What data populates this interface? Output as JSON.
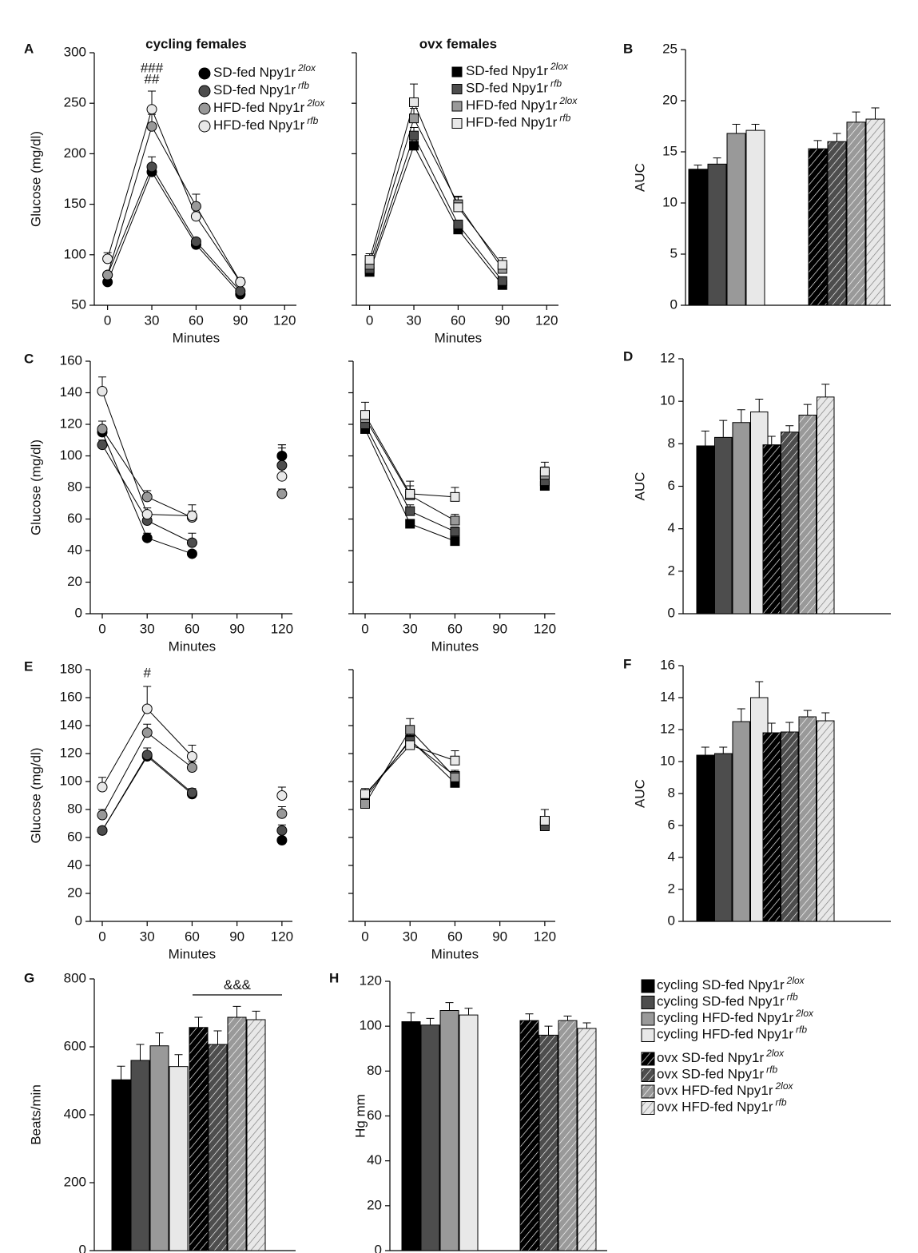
{
  "chart_data": [
    {
      "type": "line",
      "panel": "A",
      "title": "cycling females",
      "ylabel": "Glucose (mg/dl)",
      "xlabel": "Minutes",
      "marker": "circle",
      "x": [
        0,
        30,
        60,
        90,
        120
      ],
      "xlim": [
        -9,
        128
      ],
      "xticks": [
        0,
        30,
        60,
        90,
        120
      ],
      "ylim": [
        50,
        300
      ],
      "yticks": [
        50,
        100,
        150,
        200,
        250,
        300
      ],
      "annotations": [
        {
          "text": "###",
          "x": 30,
          "y": 284
        },
        {
          "text": "##",
          "x": 30,
          "y": 273
        }
      ],
      "series": [
        {
          "name": "SD-fed Npy1r",
          "sup": "2lox",
          "color": "#000000",
          "values": [
            73,
            182,
            110,
            61,
            null
          ],
          "errors": [
            2,
            3,
            3,
            2,
            null
          ]
        },
        {
          "name": "SD-fed Npy1r",
          "sup": "rfb",
          "color": "#4d4d4d",
          "values": [
            80,
            187,
            113,
            64,
            null
          ],
          "errors": [
            2,
            10,
            3,
            3,
            null
          ]
        },
        {
          "name": "HFD-fed Npy1r",
          "sup": "2lox",
          "color": "#999999",
          "values": [
            80,
            227,
            148,
            73,
            null
          ],
          "errors": [
            3,
            12,
            12,
            3,
            null
          ]
        },
        {
          "name": "HFD-fed Npy1r",
          "sup": "rfb",
          "color": "#e8e8e8",
          "values": [
            96,
            244,
            138,
            73,
            null
          ],
          "errors": [
            6,
            18,
            10,
            4,
            null
          ]
        }
      ]
    },
    {
      "type": "line",
      "title": "ovx females",
      "xlabel": "Minutes",
      "marker": "square",
      "sharey": true,
      "x": [
        0,
        30,
        60,
        90,
        120
      ],
      "xlim": [
        -9,
        128
      ],
      "xticks": [
        0,
        30,
        60,
        90,
        120
      ],
      "series": [
        {
          "name": "SD-fed Npy1r",
          "sup": "2lox",
          "color": "#000000",
          "values": [
            83,
            208,
            125,
            70,
            null
          ],
          "errors": [
            2,
            3,
            3,
            2,
            null
          ]
        },
        {
          "name": "SD-fed Npy1r",
          "sup": "rfb",
          "color": "#4d4d4d",
          "values": [
            86,
            218,
            130,
            74,
            null
          ],
          "errors": [
            3,
            8,
            4,
            3,
            null
          ]
        },
        {
          "name": "HFD-fed Npy1r",
          "sup": "2lox",
          "color": "#999999",
          "values": [
            90,
            235,
            150,
            86,
            null
          ],
          "errors": [
            5,
            10,
            8,
            5,
            null
          ]
        },
        {
          "name": "HFD-fed Npy1r",
          "sup": "rfb",
          "color": "#e8e8e8",
          "values": [
            95,
            251,
            147,
            90,
            null
          ],
          "errors": [
            6,
            18,
            10,
            7,
            null
          ]
        }
      ]
    },
    {
      "type": "bar",
      "panel": "B",
      "ylabel": "AUC",
      "ylim": [
        0,
        25
      ],
      "yticks": [
        0,
        5,
        10,
        15,
        20,
        25
      ],
      "values": [
        13.3,
        13.8,
        16.8,
        17.1,
        15.3,
        16.0,
        17.9,
        18.2
      ],
      "errors": [
        0.4,
        0.6,
        0.9,
        0.6,
        0.8,
        0.8,
        1.0,
        1.1
      ],
      "colors": [
        "#000000",
        "#4d4d4d",
        "#999999",
        "#e8e8e8",
        "#000000",
        "#4d4d4d",
        "#999999",
        "#e8e8e8"
      ],
      "hatch": [
        false,
        false,
        false,
        false,
        true,
        true,
        true,
        true
      ]
    },
    {
      "type": "line",
      "panel": "C",
      "ylabel": "Glucose (mg/dl)",
      "xlabel": "Minutes",
      "marker": "circle",
      "x": [
        0,
        30,
        60,
        90,
        120
      ],
      "xlim": [
        -8,
        127
      ],
      "xticks": [
        0,
        30,
        60,
        90,
        120
      ],
      "ylim": [
        0,
        160
      ],
      "yticks": [
        0,
        20,
        40,
        60,
        80,
        100,
        120,
        140,
        160
      ],
      "series": [
        {
          "color": "#000000",
          "values": [
            115,
            48,
            38,
            null,
            100
          ],
          "errors": [
            3,
            3,
            2,
            null,
            5
          ]
        },
        {
          "color": "#4d4d4d",
          "values": [
            107,
            59,
            45,
            null,
            94
          ],
          "errors": [
            3,
            3,
            6,
            null,
            13
          ]
        },
        {
          "color": "#999999",
          "values": [
            117,
            74,
            61,
            null,
            76
          ],
          "errors": [
            5,
            4,
            4,
            null,
            3
          ]
        },
        {
          "color": "#e8e8e8",
          "values": [
            141,
            63,
            62,
            null,
            87
          ],
          "errors": [
            9,
            4,
            7,
            null,
            20
          ]
        }
      ]
    },
    {
      "type": "line",
      "xlabel": "Minutes",
      "marker": "square",
      "sharey": true,
      "x": [
        0,
        30,
        60,
        90,
        120
      ],
      "xlim": [
        -8,
        127
      ],
      "xticks": [
        0,
        30,
        60,
        90,
        120
      ],
      "series": [
        {
          "color": "#000000",
          "values": [
            117,
            57,
            46,
            null,
            81
          ],
          "errors": [
            2,
            2,
            2,
            null,
            2
          ]
        },
        {
          "color": "#4d4d4d",
          "values": [
            120,
            65,
            52,
            null,
            84
          ],
          "errors": [
            3,
            4,
            3,
            null,
            3
          ]
        },
        {
          "color": "#999999",
          "values": [
            124,
            75,
            59,
            null,
            88
          ],
          "errors": [
            4,
            6,
            4,
            null,
            5
          ]
        },
        {
          "color": "#e8e8e8",
          "values": [
            126,
            76,
            74,
            null,
            90
          ],
          "errors": [
            8,
            8,
            6,
            null,
            6
          ]
        }
      ]
    },
    {
      "type": "bar",
      "panel": "D",
      "ylabel": "AUC",
      "ylim": [
        0,
        12
      ],
      "yticks": [
        0,
        2,
        4,
        6,
        8,
        10,
        12
      ],
      "values": [
        7.9,
        8.3,
        9.0,
        9.5,
        7.95,
        8.55,
        9.35,
        10.2
      ],
      "errors": [
        0.7,
        0.8,
        0.6,
        0.6,
        0.4,
        0.3,
        0.5,
        0.6
      ],
      "colors": [
        "#000000",
        "#4d4d4d",
        "#999999",
        "#e8e8e8",
        "#000000",
        "#4d4d4d",
        "#999999",
        "#e8e8e8"
      ],
      "hatch": [
        false,
        false,
        false,
        false,
        true,
        true,
        true,
        true
      ]
    },
    {
      "type": "line",
      "panel": "E",
      "ylabel": "Glucose (mg/dl)",
      "xlabel": "Minutes",
      "marker": "circle",
      "x": [
        0,
        30,
        60,
        90,
        120
      ],
      "xlim": [
        -8,
        127
      ],
      "xticks": [
        0,
        30,
        60,
        90,
        120
      ],
      "ylim": [
        0,
        180
      ],
      "yticks": [
        0,
        20,
        40,
        60,
        80,
        100,
        120,
        140,
        160,
        180
      ],
      "annotations": [
        {
          "text": "#",
          "x": 30,
          "y": 177
        }
      ],
      "series": [
        {
          "color": "#000000",
          "values": [
            65,
            118,
            91,
            null,
            58
          ],
          "errors": [
            2,
            3,
            3,
            null,
            2
          ]
        },
        {
          "color": "#4d4d4d",
          "values": [
            65,
            119,
            92,
            null,
            65
          ],
          "errors": [
            2,
            5,
            3,
            null,
            4
          ]
        },
        {
          "color": "#999999",
          "values": [
            76,
            135,
            110,
            null,
            77
          ],
          "errors": [
            4,
            6,
            4,
            null,
            5
          ]
        },
        {
          "color": "#e8e8e8",
          "values": [
            96,
            152,
            118,
            null,
            90
          ],
          "errors": [
            7,
            16,
            8,
            null,
            6
          ]
        }
      ]
    },
    {
      "type": "line",
      "xlabel": "Minutes",
      "marker": "square",
      "sharey": true,
      "x": [
        0,
        30,
        60,
        90,
        120
      ],
      "xlim": [
        -8,
        127
      ],
      "xticks": [
        0,
        30,
        60,
        90,
        120
      ],
      "series": [
        {
          "color": "#000000",
          "values": [
            88,
            130,
            99,
            null,
            70
          ],
          "errors": [
            2,
            3,
            3,
            null,
            3
          ]
        },
        {
          "color": "#4d4d4d",
          "values": [
            90,
            129,
            104,
            null,
            68
          ],
          "errors": [
            3,
            5,
            4,
            null,
            4
          ]
        },
        {
          "color": "#999999",
          "values": [
            84,
            137,
            103,
            null,
            72
          ],
          "errors": [
            3,
            8,
            5,
            null,
            8
          ]
        },
        {
          "color": "#e8e8e8",
          "values": [
            91,
            126,
            115,
            null,
            72
          ],
          "errors": [
            4,
            6,
            7,
            null,
            8
          ]
        }
      ]
    },
    {
      "type": "bar",
      "panel": "F",
      "ylabel": "AUC",
      "ylim": [
        0,
        16
      ],
      "yticks": [
        0,
        2,
        4,
        6,
        8,
        10,
        12,
        14,
        16
      ],
      "values": [
        10.4,
        10.5,
        12.5,
        14.0,
        11.8,
        11.85,
        12.8,
        12.55
      ],
      "errors": [
        0.5,
        0.4,
        0.8,
        1.0,
        0.6,
        0.6,
        0.4,
        0.5
      ],
      "colors": [
        "#000000",
        "#4d4d4d",
        "#999999",
        "#e8e8e8",
        "#000000",
        "#4d4d4d",
        "#999999",
        "#e8e8e8"
      ],
      "hatch": [
        false,
        false,
        false,
        false,
        true,
        true,
        true,
        true
      ]
    },
    {
      "type": "bar",
      "panel": "G",
      "ylabel": "Beats/min",
      "ylim": [
        0,
        800
      ],
      "yticks": [
        0,
        200,
        400,
        600,
        800
      ],
      "annotations": [
        {
          "text": "&&&",
          "y": 780,
          "line_y": 753
        }
      ],
      "values": [
        503,
        560,
        603,
        542,
        657,
        607,
        687,
        680
      ],
      "errors": [
        40,
        47,
        38,
        35,
        30,
        40,
        32,
        25
      ],
      "colors": [
        "#000000",
        "#4d4d4d",
        "#999999",
        "#e8e8e8",
        "#000000",
        "#4d4d4d",
        "#999999",
        "#e8e8e8"
      ],
      "hatch": [
        false,
        false,
        false,
        false,
        true,
        true,
        true,
        true
      ]
    },
    {
      "type": "bar",
      "panel": "H",
      "ylabel": "Hg mm",
      "ylim": [
        0,
        120
      ],
      "yticks": [
        0,
        20,
        40,
        60,
        80,
        100,
        120
      ],
      "values": [
        102,
        100.5,
        107,
        105,
        102.5,
        96,
        102.5,
        99
      ],
      "errors": [
        4,
        3,
        3.5,
        3,
        3,
        4,
        2,
        2.5
      ],
      "colors": [
        "#000000",
        "#4d4d4d",
        "#999999",
        "#e8e8e8",
        "#000000",
        "#4d4d4d",
        "#999999",
        "#e8e8e8"
      ],
      "hatch": [
        false,
        false,
        false,
        false,
        true,
        true,
        true,
        true
      ]
    }
  ],
  "legend": [
    {
      "name": "cycling SD-fed Npy1r",
      "sup": "2lox",
      "color": "#000000",
      "hatch": false
    },
    {
      "name": "cycling SD-fed Npy1r",
      "sup": "rfb",
      "color": "#4d4d4d",
      "hatch": false
    },
    {
      "name": "cycling HFD-fed Npy1r",
      "sup": "2lox",
      "color": "#999999",
      "hatch": false
    },
    {
      "name": "cycling HFD-fed Npy1r",
      "sup": "rfb",
      "color": "#e8e8e8",
      "hatch": false
    },
    {
      "name": "ovx SD-fed Npy1r",
      "sup": "2lox",
      "color": "#000000",
      "hatch": true
    },
    {
      "name": "ovx SD-fed Npy1r",
      "sup": "rfb",
      "color": "#4d4d4d",
      "hatch": true
    },
    {
      "name": "ovx HFD-fed Npy1r",
      "sup": "2lox",
      "color": "#999999",
      "hatch": true
    },
    {
      "name": "ovx HFD-fed Npy1r",
      "sup": "rfb",
      "color": "#e8e8e8",
      "hatch": true
    }
  ]
}
